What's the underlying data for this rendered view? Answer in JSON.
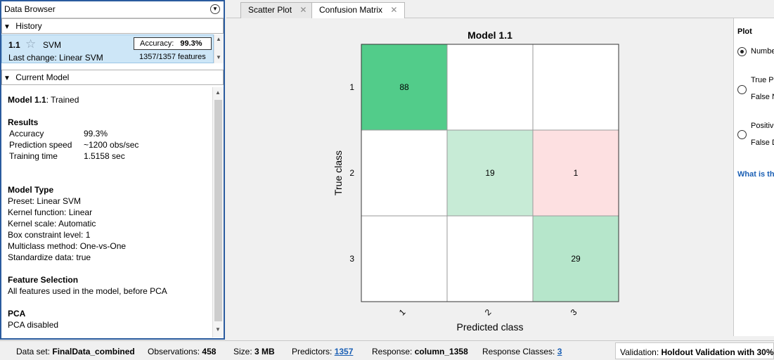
{
  "data_browser": {
    "title": "Data Browser",
    "history": {
      "header": "History",
      "entry": {
        "id": "1.1",
        "model": "SVM",
        "last_change_label": "Last change:",
        "last_change_value": "Linear SVM",
        "accuracy_label": "Accuracy:",
        "accuracy_value": "99.3%",
        "features": "1357/1357 features"
      }
    },
    "current_model": {
      "header": "Current Model",
      "title_id": "Model 1.1",
      "title_status": ": Trained",
      "results_heading": "Results",
      "results": [
        {
          "k": "Accuracy",
          "v": "99.3%"
        },
        {
          "k": "Prediction speed",
          "v": "~1200 obs/sec"
        },
        {
          "k": "Training time",
          "v": "1.5158 sec"
        }
      ],
      "model_type_heading": "Model Type",
      "model_type": [
        "Preset: Linear SVM",
        "Kernel function: Linear",
        "Kernel scale: Automatic",
        "Box constraint level: 1",
        "Multiclass method: One-vs-One",
        "Standardize data: true"
      ],
      "feature_selection_heading": "Feature Selection",
      "feature_selection_text": "All features used in the model, before PCA",
      "pca_heading": "PCA",
      "pca_text": "PCA disabled"
    }
  },
  "tabs": [
    {
      "label": "Scatter Plot",
      "active": false
    },
    {
      "label": "Confusion Matrix",
      "active": true
    }
  ],
  "chart_data": {
    "type": "heatmap",
    "title": "Model 1.1",
    "xlabel": "Predicted class",
    "ylabel": "True class",
    "classes": [
      "1",
      "2",
      "3"
    ],
    "matrix": [
      [
        88,
        null,
        null
      ],
      [
        null,
        19,
        1
      ],
      [
        null,
        null,
        29
      ]
    ],
    "colors": {
      "correct_strong": "#52cc8a",
      "correct_light": "#c7ebd6",
      "correct_mid": "#b6e6cb",
      "error": "#fde0e1",
      "empty": "#ffffff"
    }
  },
  "plot_panel": {
    "heading": "Plot",
    "options": [
      {
        "line1": "Numbe",
        "line2": "",
        "selected": true
      },
      {
        "line1": "True Po",
        "line2": "False N",
        "selected": false
      },
      {
        "line1": "Positive",
        "line2": "False D",
        "selected": false
      }
    ],
    "help_link": "What is th"
  },
  "status_bar": {
    "dataset_label": "Data set:",
    "dataset_value": "FinalData_combined",
    "observations_label": "Observations:",
    "observations_value": "458",
    "size_label": "Size:",
    "size_value": "3 MB",
    "predictors_label": "Predictors:",
    "predictors_value": "1357",
    "response_label": "Response:",
    "response_value": "column_1358",
    "response_classes_label": "Response Classes:",
    "response_classes_value": "3",
    "validation_label": "Validation:",
    "validation_value": "Holdout Validation with 30%"
  }
}
